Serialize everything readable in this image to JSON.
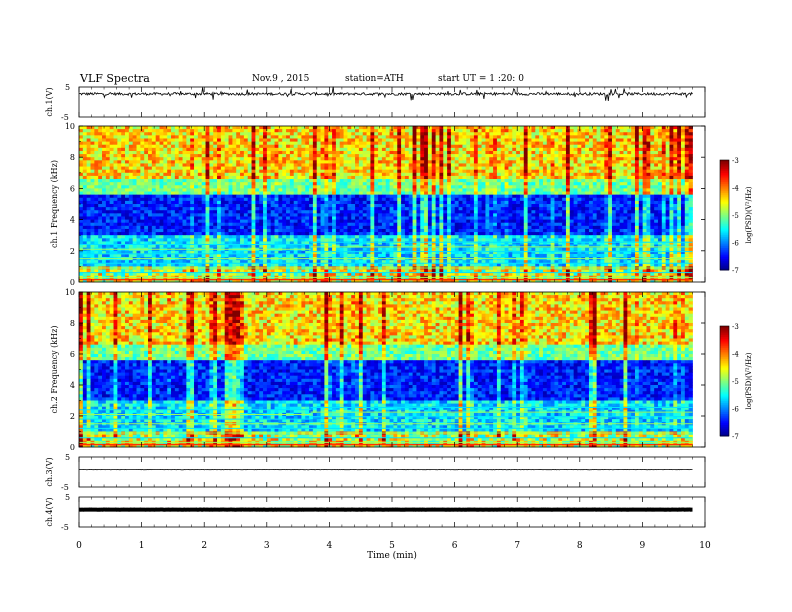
{
  "header": {
    "title": "VLF Spectra",
    "date": "Nov.9 , 2015",
    "station": "station=ATH",
    "start": "start UT = 1 :20: 0"
  },
  "chart_data": [
    {
      "type": "line",
      "panel": "ch1-waveform",
      "ylabel": "ch.1(V)",
      "ylim": [
        -5,
        5
      ],
      "yticks": [
        "5",
        "-5"
      ],
      "baseline": 2.7,
      "noise": "large spiky"
    },
    {
      "type": "heatmap",
      "panel": "ch1-spectrogram",
      "ylabel": "ch.1 Frequency (kHz)",
      "ylim": [
        0,
        10
      ],
      "yticks": [
        "0",
        "2",
        "4",
        "6",
        "8",
        "10"
      ],
      "colorbar": {
        "label": "log(PSD)(V²/Hz)",
        "ticks": [
          "-3",
          "-4",
          "-5",
          "-6",
          "-7"
        ],
        "range": [
          -7,
          -3
        ]
      },
      "band_change_min": 3.7
    },
    {
      "type": "heatmap",
      "panel": "ch2-spectrogram",
      "ylabel": "ch.2 Frequency (kHz)",
      "ylim": [
        0,
        10
      ],
      "yticks": [
        "0",
        "2",
        "4",
        "6",
        "8",
        "10"
      ],
      "colorbar": {
        "label": "log(PSD)(V²/Hz)",
        "ticks": [
          "-3",
          "-4",
          "-5",
          "-6",
          "-7"
        ],
        "range": [
          -7,
          -3
        ]
      },
      "band_change_min": 3.7
    },
    {
      "type": "line",
      "panel": "ch3-waveform",
      "ylabel": "ch.3(V)",
      "ylim": [
        -5,
        5
      ],
      "yticks": [
        "5",
        "-5"
      ],
      "baseline": 0.8,
      "noise": "small"
    },
    {
      "type": "line",
      "panel": "ch4-waveform",
      "ylabel": "ch.4(V)",
      "ylim": [
        -5,
        5
      ],
      "yticks": [
        "5",
        "-5"
      ],
      "baseline": 0.8,
      "noise": "thick flat"
    }
  ],
  "xaxis": {
    "label": "Time (min)",
    "xlim": [
      0,
      10
    ],
    "ticks": [
      "0",
      "1",
      "2",
      "3",
      "4",
      "5",
      "6",
      "7",
      "8",
      "9",
      "10"
    ],
    "data_end": 9.8
  }
}
